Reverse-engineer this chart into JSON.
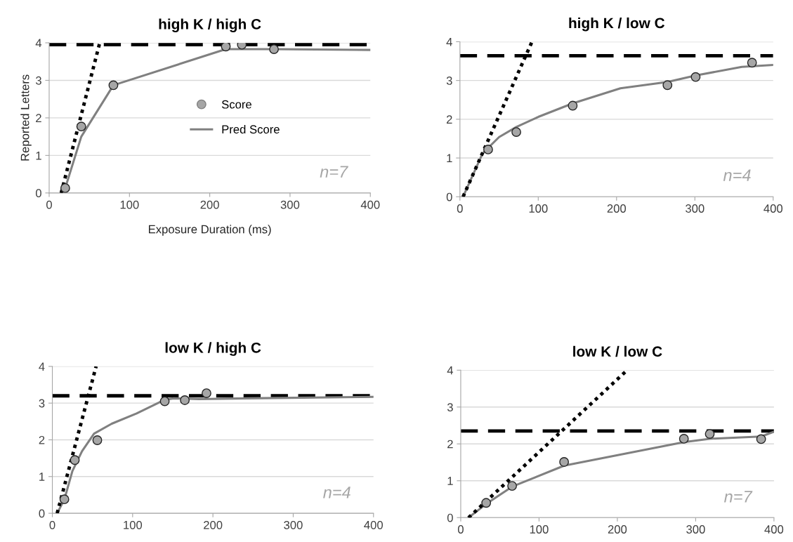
{
  "chart_data": [
    {
      "type": "line",
      "title": "high K / high C",
      "xlabel": "Exposure Duration (ms)",
      "ylabel": "Reported Letters",
      "xlim": [
        0,
        400
      ],
      "ylim": [
        0,
        4
      ],
      "xticks": [
        0,
        100,
        200,
        300,
        400
      ],
      "yticks": [
        0,
        1,
        2,
        3,
        4
      ],
      "grid": "y",
      "legend": "center",
      "annotations": [
        "n=7"
      ],
      "series": [
        {
          "name": "Score",
          "type": "scatter",
          "marker": "circle",
          "color": "#a6a6a6",
          "x": [
            20,
            40,
            80,
            220,
            240,
            280
          ],
          "values": [
            0.13,
            1.77,
            2.87,
            3.9,
            3.95,
            3.83
          ]
        },
        {
          "name": "Pred Score",
          "color": "#808080",
          "x": [
            15,
            20,
            40,
            80,
            220,
            280,
            400
          ],
          "values": [
            0,
            0.13,
            1.5,
            2.87,
            3.83,
            3.83,
            3.81
          ]
        },
        {
          "line_style": "dotted",
          "color": "#000000",
          "x": [
            15,
            63
          ],
          "values": [
            0,
            4
          ]
        }
      ],
      "ref_lines": [
        {
          "axis": "y",
          "value": 3.95,
          "color": "#000000",
          "line_style": "dashed"
        }
      ]
    },
    {
      "type": "line",
      "title": "high K / low C",
      "xlim": [
        0,
        400
      ],
      "ylim": [
        0,
        4
      ],
      "xticks": [
        0,
        100,
        200,
        300,
        400
      ],
      "yticks": [
        0,
        1,
        2,
        3,
        4
      ],
      "grid": "y",
      "annotations": [
        "n=4"
      ],
      "series": [
        {
          "type": "scatter",
          "marker": "circle",
          "color": "#a6a6a6",
          "x": [
            36,
            72,
            144,
            265,
            301,
            373
          ],
          "values": [
            1.22,
            1.67,
            2.35,
            2.88,
            3.09,
            3.46
          ]
        },
        {
          "color": "#808080",
          "x": [
            4,
            29,
            50,
            72,
            100,
            144,
            205,
            265,
            301,
            360,
            400
          ],
          "values": [
            0,
            1.12,
            1.54,
            1.8,
            2.06,
            2.41,
            2.8,
            2.96,
            3.13,
            3.35,
            3.4
          ]
        },
        {
          "line_style": "dotted",
          "color": "#000000",
          "x": [
            4,
            92
          ],
          "values": [
            0,
            4
          ]
        }
      ],
      "ref_lines": [
        {
          "axis": "y",
          "value": 3.64,
          "color": "#000000",
          "line_style": "dashed"
        }
      ]
    },
    {
      "type": "line",
      "title": "low K / high C",
      "xlim": [
        0,
        400
      ],
      "ylim": [
        0,
        4
      ],
      "xticks": [
        0,
        100,
        200,
        300,
        400
      ],
      "yticks": [
        0,
        1,
        2,
        3,
        4
      ],
      "grid": "y",
      "annotations": [
        "n=4"
      ],
      "series": [
        {
          "type": "scatter",
          "marker": "circle",
          "color": "#a6a6a6",
          "x": [
            15,
            28,
            56,
            140,
            165,
            192
          ],
          "values": [
            0.38,
            1.45,
            1.99,
            3.05,
            3.08,
            3.27
          ]
        },
        {
          "color": "#808080",
          "x": [
            6,
            15,
            25,
            37,
            52,
            74,
            105,
            140,
            151,
            182,
            243,
            400
          ],
          "values": [
            0,
            0.38,
            1.15,
            1.69,
            2.17,
            2.44,
            2.72,
            3.09,
            3.13,
            3.11,
            3.13,
            3.17
          ]
        },
        {
          "line_style": "dotted",
          "color": "#000000",
          "x": [
            6,
            54.5
          ],
          "values": [
            0,
            4
          ]
        }
      ],
      "ref_lines": [
        {
          "axis": "y",
          "value": 3.2,
          "color": "#000000",
          "line_style": "dashed"
        }
      ]
    },
    {
      "type": "line",
      "title": "low K / low C",
      "xlim": [
        0,
        400
      ],
      "ylim": [
        0,
        4
      ],
      "xticks": [
        0,
        100,
        200,
        300,
        400
      ],
      "yticks": [
        0,
        1,
        2,
        3,
        4
      ],
      "grid": "y",
      "annotations": [
        "n=7"
      ],
      "series": [
        {
          "type": "scatter",
          "marker": "circle",
          "color": "#a6a6a6",
          "x": [
            32.5,
            65.6,
            132,
            285,
            318,
            383.6
          ],
          "values": [
            0.4,
            0.86,
            1.51,
            2.14,
            2.27,
            2.13
          ]
        },
        {
          "color": "#808080",
          "x": [
            10,
            32.5,
            65.6,
            132,
            285,
            318,
            383.6,
            400
          ],
          "values": [
            0,
            0.37,
            0.84,
            1.41,
            2.05,
            2.14,
            2.2,
            2.33
          ]
        },
        {
          "line_style": "dotted",
          "color": "#000000",
          "x": [
            10,
            211
          ],
          "values": [
            0,
            3.97
          ]
        }
      ],
      "ref_lines": [
        {
          "axis": "y",
          "value": 2.35,
          "color": "#000000",
          "line_style": "dashed"
        }
      ]
    }
  ]
}
